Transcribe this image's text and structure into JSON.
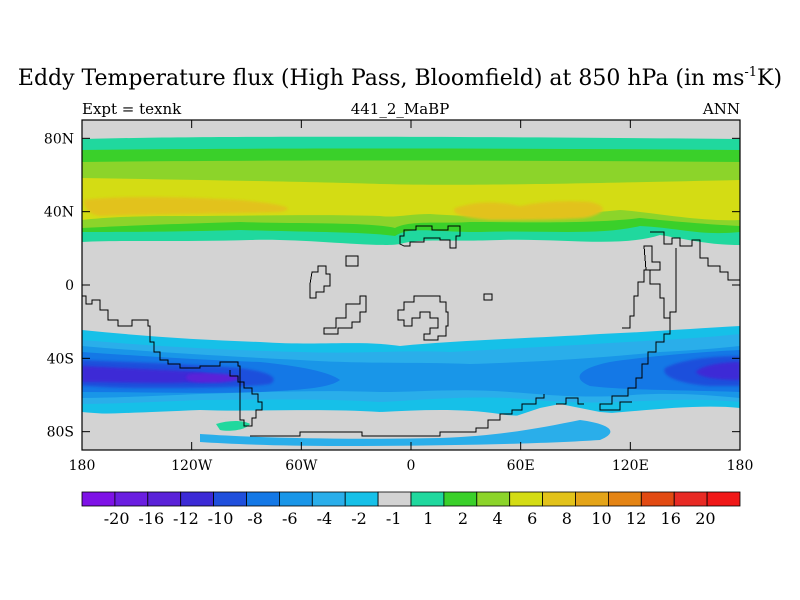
{
  "header": {
    "title_main": "Eddy Temperature flux (High Pass, Bloomfield) at 850 hPa (in ms",
    "title_sup": "-1",
    "title_end": "K)",
    "left_label": "Expt = texnk",
    "center_label": "441_2_MaBP",
    "right_label": "ANN"
  },
  "map": {
    "projection": "cylindrical-equidistant",
    "lon_range": [
      -180,
      180
    ],
    "lat_range": [
      -90,
      90
    ],
    "x_ticks": [
      {
        "value": -180,
        "label": "180"
      },
      {
        "value": -120,
        "label": "120W"
      },
      {
        "value": -60,
        "label": "60W"
      },
      {
        "value": 0,
        "label": "0"
      },
      {
        "value": 60,
        "label": "60E"
      },
      {
        "value": 120,
        "label": "120E"
      },
      {
        "value": 180,
        "label": "180"
      }
    ],
    "y_ticks": [
      {
        "value": 80,
        "label": "80N"
      },
      {
        "value": 40,
        "label": "40N"
      },
      {
        "value": 0,
        "label": "0"
      },
      {
        "value": -40,
        "label": "40S"
      },
      {
        "value": -80,
        "label": "80S"
      }
    ],
    "missing_color": "#d3d3d3",
    "coastline_color": "#000000"
  },
  "colorbar": {
    "colors": [
      "#7e12e6",
      "#6a1ee0",
      "#5a22d8",
      "#3c2ad6",
      "#1f4fdc",
      "#1478e6",
      "#1996e8",
      "#2aaeea",
      "#16c0e8",
      "#d3d3d3",
      "#20d89e",
      "#3ad02a",
      "#8cd42a",
      "#d4dc14",
      "#e2c21a",
      "#e4a418",
      "#e48414",
      "#e24a12",
      "#e82a24",
      "#f01818"
    ],
    "labels": [
      "-20",
      "-16",
      "-12",
      "-10",
      "-8",
      "-6",
      "-4",
      "-2",
      "-1",
      "1",
      "2",
      "4",
      "6",
      "8",
      "10",
      "12",
      "16",
      "20"
    ]
  }
}
